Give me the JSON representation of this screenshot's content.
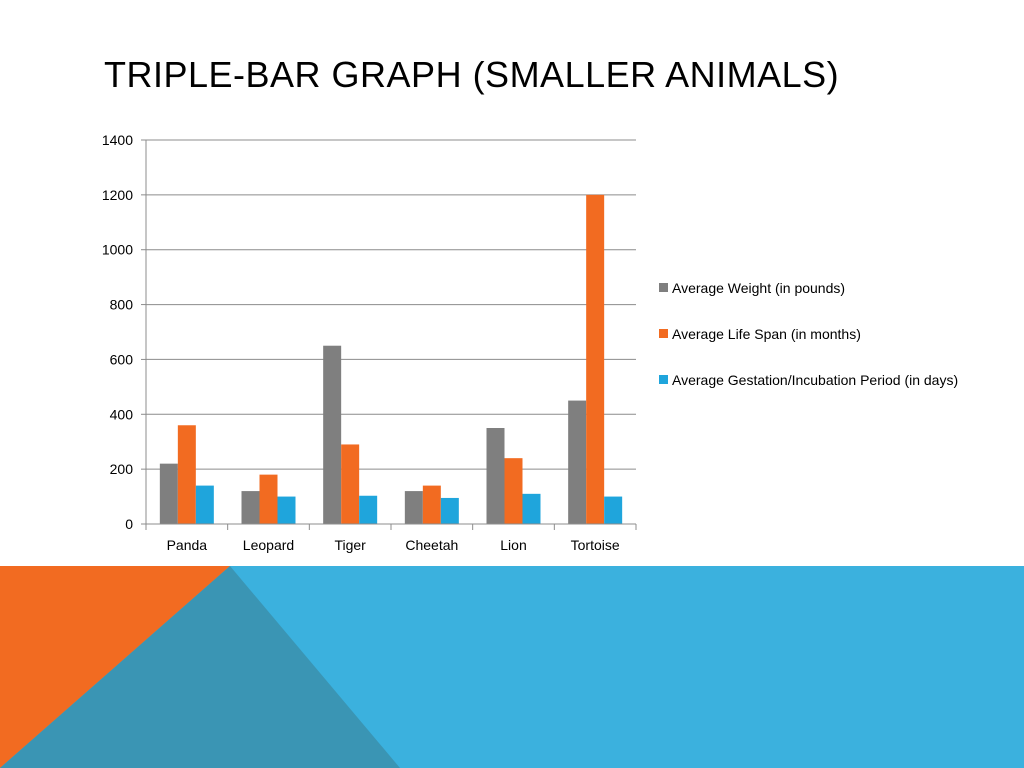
{
  "slide": {
    "title": "TRIPLE-BAR GRAPH (SMALLER ANIMALS)"
  },
  "colors": {
    "weight": "#7f7f7f",
    "lifespan": "#f26b21",
    "gestation": "#1fa5dc",
    "banner_blue": "#3bb1de",
    "banner_orange": "#f26b21",
    "banner_teal": "#3a95b4"
  },
  "chart_data": {
    "type": "bar",
    "title": "",
    "xlabel": "",
    "ylabel": "",
    "ylim": [
      0,
      1400
    ],
    "yticks": [
      0,
      200,
      400,
      600,
      800,
      1000,
      1200,
      1400
    ],
    "grid": true,
    "legend_position": "right",
    "categories": [
      "Panda",
      "Leopard",
      "Tiger",
      "Cheetah",
      "Lion",
      "Tortoise"
    ],
    "series": [
      {
        "name": "Average Weight (in pounds)",
        "values": [
          220,
          120,
          650,
          120,
          350,
          450
        ]
      },
      {
        "name": "Average Life Span (in months)",
        "values": [
          360,
          180,
          290,
          140,
          240,
          1200
        ]
      },
      {
        "name": "Average Gestation/Incubation Period (in days)",
        "values": [
          140,
          100,
          103,
          95,
          110,
          100
        ]
      }
    ]
  }
}
